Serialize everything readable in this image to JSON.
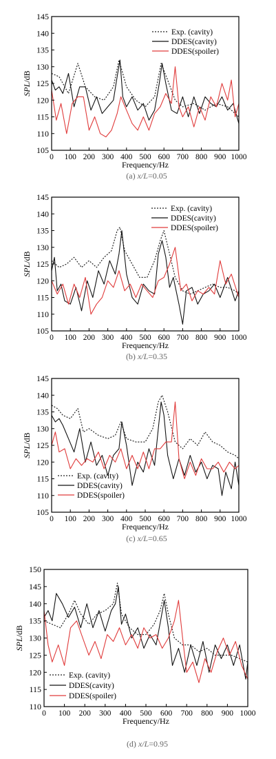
{
  "colors": {
    "exp": "#222222",
    "ddes_cavity": "#111111",
    "ddes_spoiler": "#e03a3a",
    "axis": "#000000",
    "caption": "#666666"
  },
  "chart_data": [
    {
      "type": "line",
      "caption": "(a) x/L=0.05",
      "caption_prefix": "(a)",
      "caption_var": "x/L",
      "caption_val": "=0.05",
      "xlabel": "Frequency/Hz",
      "ylabel_var": "SPL",
      "ylabel_unit": "/dB",
      "xlim": [
        0,
        1000
      ],
      "ylim": [
        105,
        145
      ],
      "xticks": [
        0,
        100,
        200,
        300,
        400,
        500,
        600,
        700,
        800,
        900,
        1000
      ],
      "yticks": [
        105,
        110,
        115,
        120,
        125,
        130,
        135,
        140,
        145
      ],
      "legend_position": "top-right",
      "series": [
        {
          "name": "Exp. (cavity)",
          "style": "dotted",
          "color": "#222222",
          "x": [
            0,
            40,
            90,
            140,
            180,
            230,
            280,
            330,
            360,
            400,
            450,
            500,
            550,
            585,
            620,
            660,
            700,
            760,
            820,
            880,
            940,
            980,
            1000
          ],
          "y": [
            128,
            127,
            122,
            131,
            124,
            121,
            120,
            124,
            132,
            124,
            120,
            118,
            121,
            131,
            126,
            120,
            118,
            119,
            117,
            119,
            118,
            116,
            115
          ]
        },
        {
          "name": "DDES(cavity)",
          "style": "solid",
          "color": "#111111",
          "x": [
            0,
            20,
            40,
            60,
            90,
            120,
            150,
            180,
            210,
            240,
            270,
            300,
            330,
            350,
            365,
            380,
            400,
            430,
            460,
            490,
            520,
            550,
            575,
            590,
            610,
            640,
            670,
            700,
            730,
            760,
            790,
            820,
            850,
            880,
            910,
            940,
            970,
            1000
          ],
          "y": [
            126,
            123,
            124,
            122,
            128,
            118,
            124,
            124,
            117,
            121,
            116,
            118,
            120,
            127,
            132,
            121,
            118,
            121,
            117,
            119,
            114,
            117,
            125,
            131,
            125,
            117,
            116,
            121,
            115,
            121,
            116,
            121,
            119,
            118,
            121,
            117,
            119,
            113
          ]
        },
        {
          "name": "DDES(spoiler)",
          "style": "solid",
          "color": "#e03a3a",
          "x": [
            0,
            25,
            50,
            80,
            110,
            140,
            170,
            200,
            230,
            260,
            290,
            320,
            350,
            370,
            400,
            430,
            460,
            490,
            520,
            550,
            580,
            610,
            640,
            660,
            680,
            700,
            730,
            760,
            790,
            820,
            850,
            880,
            910,
            940,
            960,
            980,
            1000
          ],
          "y": [
            123,
            114,
            119,
            110,
            119,
            121,
            121,
            111,
            115,
            110,
            109,
            111,
            116,
            121,
            117,
            113,
            111,
            115,
            111,
            116,
            118,
            122,
            119,
            130,
            118,
            115,
            118,
            112,
            118,
            114,
            121,
            118,
            125,
            120,
            126,
            115,
            119
          ]
        }
      ]
    },
    {
      "type": "line",
      "caption": "(b) x/L=0.35",
      "caption_prefix": "(b)",
      "caption_var": "x/L",
      "caption_val": "=0.35",
      "xlabel": "Frequency/Hz",
      "ylabel_var": "SPL",
      "ylabel_unit": "/dB",
      "xlim": [
        0,
        1000
      ],
      "ylim": [
        105,
        145
      ],
      "xticks": [
        0,
        100,
        200,
        300,
        400,
        500,
        600,
        700,
        800,
        900,
        1000
      ],
      "yticks": [
        105,
        110,
        115,
        120,
        125,
        130,
        135,
        140,
        145
      ],
      "legend_position": "top-right",
      "series": [
        {
          "name": "Exp. (cavity)",
          "style": "dotted",
          "color": "#222222",
          "x": [
            0,
            40,
            80,
            120,
            160,
            200,
            240,
            280,
            320,
            350,
            365,
            390,
            430,
            470,
            510,
            550,
            580,
            600,
            630,
            660,
            700,
            740,
            780,
            820,
            860,
            900,
            940,
            980,
            1000
          ],
          "y": [
            126,
            124,
            125,
            127,
            124,
            126,
            124,
            127,
            129,
            135,
            136,
            129,
            125,
            121,
            121,
            126,
            132,
            135,
            128,
            121,
            117,
            116,
            117,
            118,
            119,
            118,
            118,
            117,
            116
          ]
        },
        {
          "name": "DDES(cavity)",
          "style": "solid",
          "color": "#111111",
          "x": [
            0,
            15,
            30,
            50,
            70,
            100,
            130,
            160,
            190,
            220,
            250,
            280,
            310,
            340,
            360,
            375,
            400,
            430,
            460,
            490,
            520,
            550,
            570,
            590,
            610,
            630,
            650,
            680,
            700,
            720,
            750,
            780,
            810,
            840,
            870,
            900,
            940,
            980,
            1000
          ],
          "y": [
            123,
            127,
            117,
            119,
            114,
            113,
            118,
            111,
            120,
            115,
            123,
            119,
            126,
            122,
            128,
            135,
            122,
            115,
            113,
            119,
            117,
            116,
            128,
            132,
            127,
            118,
            121,
            113,
            107,
            117,
            118,
            113,
            116,
            117,
            119,
            115,
            121,
            114,
            117
          ]
        },
        {
          "name": "DDES(spoiler)",
          "style": "solid",
          "color": "#e03a3a",
          "x": [
            0,
            30,
            60,
            90,
            120,
            150,
            180,
            210,
            240,
            270,
            300,
            330,
            360,
            390,
            420,
            450,
            480,
            510,
            540,
            570,
            600,
            630,
            660,
            690,
            720,
            750,
            780,
            810,
            840,
            870,
            900,
            930,
            960,
            1000
          ],
          "y": [
            120,
            116,
            119,
            113,
            119,
            115,
            121,
            110,
            113,
            115,
            120,
            118,
            123,
            117,
            119,
            115,
            119,
            117,
            115,
            120,
            121,
            125,
            130,
            117,
            119,
            114,
            117,
            116,
            118,
            116,
            126,
            119,
            122,
            115
          ]
        }
      ]
    },
    {
      "type": "line",
      "caption": "(c) x/L=0.65",
      "caption_prefix": "(c)",
      "caption_var": "x/L",
      "caption_val": "=0.65",
      "xlabel": "Frequency/Hz",
      "ylabel_var": "SPL",
      "ylabel_unit": "/dB",
      "xlim": [
        0,
        1000
      ],
      "ylim": [
        105,
        145
      ],
      "xticks": [
        0,
        100,
        200,
        300,
        400,
        500,
        600,
        700,
        800,
        900,
        1000
      ],
      "yticks": [
        105,
        110,
        115,
        120,
        125,
        130,
        135,
        140,
        145
      ],
      "legend_position": "bottom-left",
      "series": [
        {
          "name": "Exp. (cavity)",
          "style": "dotted",
          "color": "#222222",
          "x": [
            0,
            30,
            60,
            100,
            140,
            170,
            200,
            250,
            300,
            340,
            370,
            400,
            450,
            500,
            540,
            570,
            590,
            620,
            660,
            700,
            740,
            780,
            820,
            860,
            900,
            940,
            980,
            1000
          ],
          "y": [
            137,
            136,
            134,
            133,
            136,
            129,
            130,
            128,
            127,
            128,
            132,
            127,
            126,
            126,
            130,
            138,
            140,
            135,
            126,
            124,
            127,
            125,
            129,
            126,
            125,
            123,
            122,
            121
          ]
        },
        {
          "name": "DDES(cavity)",
          "style": "solid",
          "color": "#111111",
          "x": [
            0,
            20,
            40,
            60,
            90,
            120,
            150,
            180,
            210,
            240,
            270,
            300,
            330,
            360,
            375,
            400,
            430,
            460,
            490,
            520,
            550,
            570,
            585,
            600,
            620,
            650,
            680,
            710,
            740,
            770,
            800,
            830,
            860,
            890,
            910,
            930,
            960,
            980,
            1000
          ],
          "y": [
            134,
            132,
            133,
            131,
            127,
            123,
            130,
            120,
            126,
            119,
            122,
            116,
            122,
            124,
            132,
            125,
            113,
            120,
            117,
            124,
            119,
            130,
            138,
            134,
            122,
            115,
            121,
            116,
            122,
            117,
            120,
            115,
            119,
            118,
            110,
            117,
            112,
            120,
            113
          ]
        },
        {
          "name": "DDES(spoiler)",
          "style": "solid",
          "color": "#e03a3a",
          "x": [
            0,
            20,
            40,
            70,
            100,
            130,
            160,
            190,
            220,
            250,
            280,
            310,
            340,
            370,
            400,
            430,
            460,
            490,
            520,
            550,
            580,
            610,
            640,
            660,
            680,
            710,
            740,
            770,
            800,
            830,
            860,
            890,
            920,
            950,
            980,
            1000
          ],
          "y": [
            125,
            129,
            123,
            124,
            118,
            121,
            119,
            121,
            120,
            123,
            118,
            122,
            120,
            124,
            118,
            122,
            118,
            123,
            118,
            124,
            124,
            126,
            126,
            138,
            121,
            115,
            120,
            116,
            121,
            118,
            118,
            120,
            117,
            120,
            118,
            119
          ]
        }
      ]
    },
    {
      "type": "line",
      "caption": "(d) x/L=0.95",
      "caption_prefix": "(d)",
      "caption_var": "x/L",
      "caption_val": "=0.95",
      "xlabel": "Frequency/Hz",
      "ylabel_var": "SPL",
      "ylabel_unit": "/dB",
      "xlim": [
        0,
        1000
      ],
      "ylim": [
        110,
        150
      ],
      "xticks": [
        0,
        100,
        200,
        300,
        400,
        500,
        600,
        700,
        800,
        900,
        1000
      ],
      "yticks": [
        110,
        115,
        120,
        125,
        130,
        135,
        140,
        145,
        150
      ],
      "legend_position": "bottom-left",
      "series": [
        {
          "name": "Exp. (cavity)",
          "style": "dotted",
          "color": "#222222",
          "x": [
            0,
            40,
            80,
            120,
            150,
            180,
            220,
            260,
            300,
            340,
            360,
            380,
            420,
            460,
            500,
            540,
            570,
            590,
            610,
            640,
            680,
            720,
            760,
            800,
            840,
            880,
            920,
            960,
            1000
          ],
          "y": [
            135,
            134,
            133,
            137,
            141,
            137,
            134,
            137,
            138,
            140,
            146,
            137,
            133,
            131,
            131,
            134,
            138,
            143,
            137,
            130,
            128,
            128,
            126,
            127,
            125,
            125,
            125,
            124,
            123
          ]
        },
        {
          "name": "DDES(cavity)",
          "style": "solid",
          "color": "#111111",
          "x": [
            0,
            20,
            40,
            60,
            90,
            120,
            150,
            180,
            210,
            240,
            270,
            300,
            330,
            350,
            365,
            380,
            400,
            430,
            460,
            490,
            520,
            550,
            575,
            590,
            610,
            630,
            660,
            690,
            720,
            750,
            780,
            810,
            840,
            870,
            900,
            930,
            960,
            990,
            1000
          ],
          "y": [
            136,
            138,
            135,
            143,
            140,
            136,
            139,
            133,
            140,
            133,
            138,
            132,
            138,
            140,
            145,
            134,
            137,
            130,
            133,
            127,
            131,
            128,
            136,
            141,
            133,
            122,
            127,
            120,
            128,
            122,
            129,
            120,
            128,
            124,
            128,
            122,
            128,
            118,
            123
          ]
        },
        {
          "name": "DDES(spoiler)",
          "style": "solid",
          "color": "#e03a3a",
          "x": [
            0,
            20,
            40,
            70,
            100,
            130,
            160,
            190,
            220,
            250,
            280,
            310,
            340,
            370,
            400,
            430,
            460,
            490,
            520,
            550,
            580,
            610,
            640,
            660,
            680,
            700,
            730,
            760,
            790,
            820,
            850,
            880,
            910,
            940,
            970,
            1000
          ],
          "y": [
            138,
            128,
            123,
            128,
            122,
            133,
            135,
            130,
            125,
            129,
            124,
            131,
            129,
            133,
            128,
            131,
            127,
            133,
            130,
            131,
            127,
            130,
            135,
            141,
            130,
            120,
            123,
            117,
            124,
            120,
            126,
            130,
            125,
            129,
            122,
            118
          ]
        }
      ]
    }
  ]
}
